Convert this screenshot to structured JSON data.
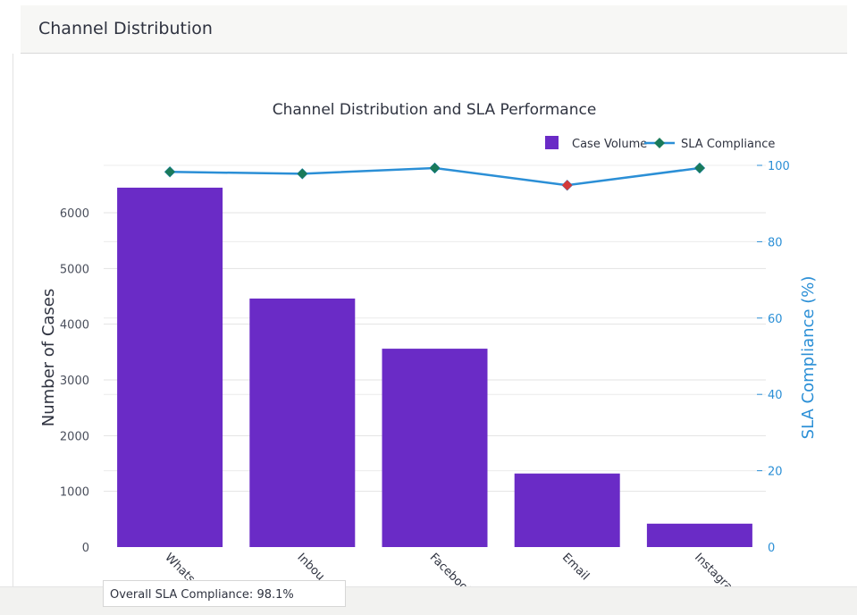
{
  "card": {
    "title": "Channel Distribution"
  },
  "chart_data": {
    "type": "bar",
    "title": "Channel Distribution and SLA Performance",
    "categories": [
      "WhatsApp",
      "Inbound",
      "Facebook",
      "Email",
      "Instagram"
    ],
    "visible_tick_labels": [
      "Whats",
      "Inbou",
      "Facebook",
      "Email",
      "Instagram"
    ],
    "series": [
      {
        "name": "Case Volume",
        "type": "bar",
        "axis": "left",
        "color": "#6a2bc6",
        "values": [
          6450,
          4460,
          3560,
          1320,
          420
        ]
      },
      {
        "name": "SLA Compliance",
        "type": "line",
        "axis": "right",
        "color": "#2b8fd6",
        "values": [
          98.3,
          97.8,
          99.3,
          94.8,
          99.3
        ],
        "marker_colors": [
          "#1a7a5a",
          "#1a7a5a",
          "#1a7a5a",
          "#d43a3a",
          "#1a7a5a"
        ]
      }
    ],
    "ylabel": "Number of Cases",
    "y2label": "SLA Compliance (%)",
    "yticks": [
      0,
      1000,
      2000,
      3000,
      4000,
      5000,
      6000
    ],
    "y2ticks": [
      0,
      20,
      40,
      60,
      80,
      100
    ],
    "ylim": [
      0,
      6850
    ],
    "y2lim": [
      0,
      100
    ],
    "grid": true,
    "legend_position": "top-right",
    "annotation": "Overall SLA Compliance: 98.1%"
  }
}
